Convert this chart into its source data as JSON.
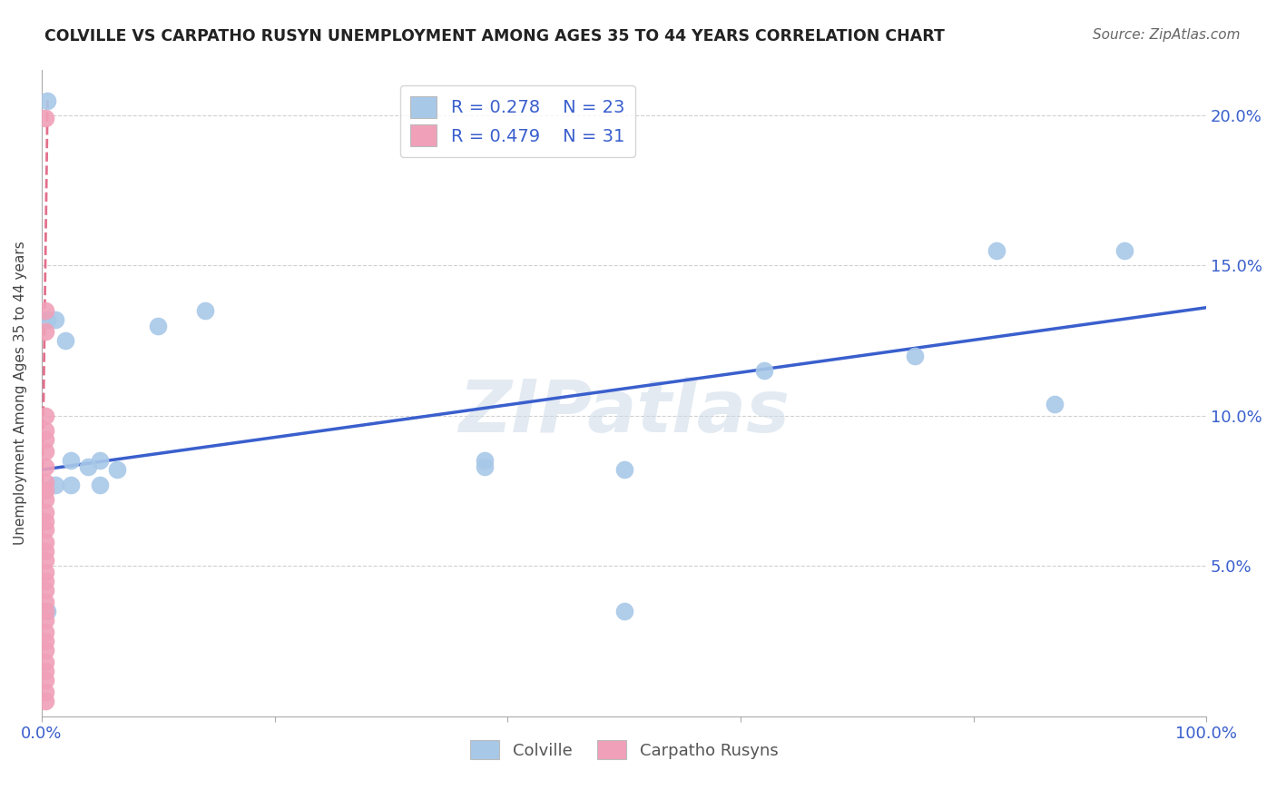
{
  "title": "COLVILLE VS CARPATHO RUSYN UNEMPLOYMENT AMONG AGES 35 TO 44 YEARS CORRELATION CHART",
  "source": "Source: ZipAtlas.com",
  "ylabel_label": "Unemployment Among Ages 35 to 44 years",
  "colville_R": 0.278,
  "colville_N": 23,
  "rusyn_R": 0.479,
  "rusyn_N": 31,
  "colville_color": "#a8c8e8",
  "rusyn_color": "#f0a0b8",
  "trendline_blue": "#3a5fcd",
  "trendline_pink": "#e06080",
  "watermark": "ZIPatlas",
  "colville_x": [
    0.005,
    0.005,
    0.012,
    0.012,
    0.02,
    0.025,
    0.025,
    0.04,
    0.05,
    0.05,
    0.065,
    0.1,
    0.14,
    0.38,
    0.38,
    0.5,
    0.5,
    0.62,
    0.75,
    0.82,
    0.87,
    0.93,
    0.005
  ],
  "colville_y": [
    0.205,
    0.132,
    0.132,
    0.077,
    0.125,
    0.077,
    0.085,
    0.083,
    0.085,
    0.077,
    0.082,
    0.13,
    0.135,
    0.085,
    0.083,
    0.035,
    0.082,
    0.115,
    0.12,
    0.155,
    0.104,
    0.155,
    0.035
  ],
  "rusyn_x": [
    0.003,
    0.003,
    0.003,
    0.003,
    0.003,
    0.003,
    0.003,
    0.003,
    0.003,
    0.003,
    0.003,
    0.003,
    0.003,
    0.003,
    0.003,
    0.003,
    0.003,
    0.003,
    0.003,
    0.003,
    0.003,
    0.003,
    0.003,
    0.003,
    0.003,
    0.003,
    0.003,
    0.003,
    0.003,
    0.003,
    0.003
  ],
  "rusyn_y": [
    0.199,
    0.135,
    0.128,
    0.1,
    0.095,
    0.092,
    0.088,
    0.083,
    0.078,
    0.075,
    0.072,
    0.068,
    0.065,
    0.062,
    0.058,
    0.055,
    0.052,
    0.048,
    0.045,
    0.042,
    0.038,
    0.035,
    0.032,
    0.028,
    0.025,
    0.022,
    0.018,
    0.015,
    0.012,
    0.008,
    0.005
  ],
  "xlim": [
    0.0,
    1.0
  ],
  "ylim": [
    0.0,
    0.215
  ],
  "xticks": [
    0.0,
    0.2,
    0.4,
    0.6,
    0.8,
    1.0
  ],
  "xtick_labels": [
    "0.0%",
    "",
    "",
    "",
    "",
    "100.0%"
  ],
  "yticks": [
    0.05,
    0.1,
    0.15,
    0.2
  ],
  "ytick_labels": [
    "5.0%",
    "10.0%",
    "15.0%",
    "20.0%"
  ],
  "grid_color": "#cccccc",
  "bg_color": "#ffffff",
  "blue_trend_x0": 0.0,
  "blue_trend_y0": 0.082,
  "blue_trend_x1": 1.0,
  "blue_trend_y1": 0.136,
  "pink_trend_x0": 0.0,
  "pink_trend_y0": 0.06,
  "pink_trend_x1": 0.005,
  "pink_trend_y1": 0.205
}
